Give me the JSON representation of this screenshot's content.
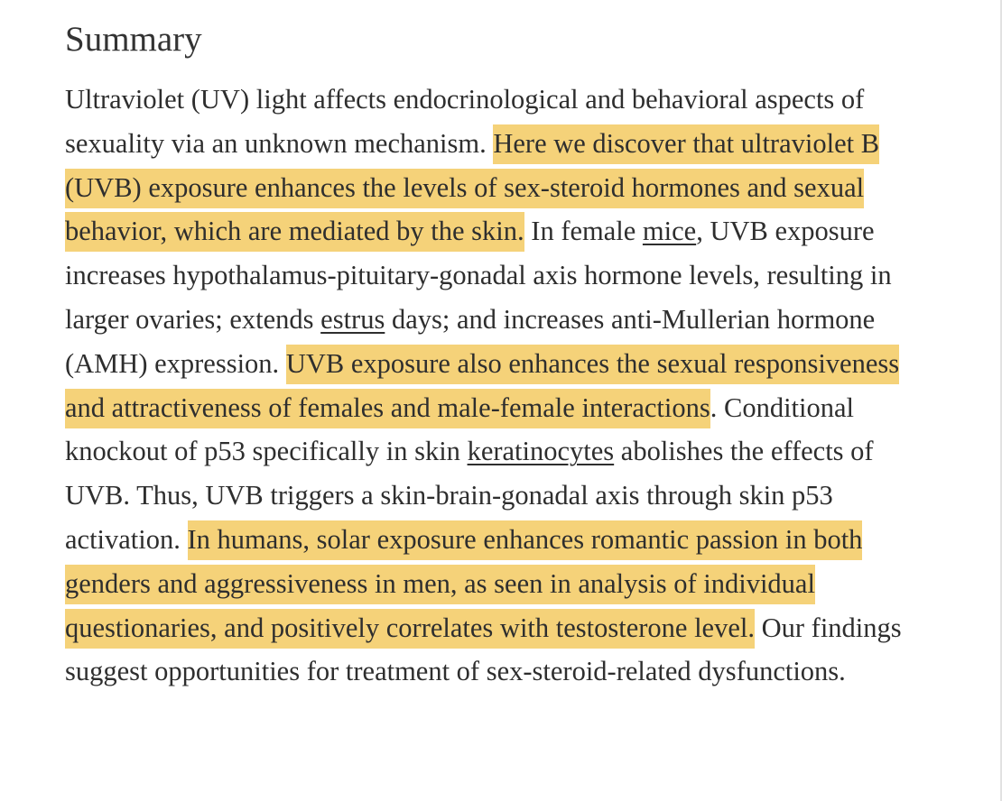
{
  "heading": "Summary",
  "paragraph": {
    "highlight_color": "#f5d279",
    "segments": [
      {
        "text": "Ultraviolet (UV) light affects endocrinological and behavioral aspects of sexuality via an unknown mechanism. ",
        "style": "plain"
      },
      {
        "text": "Here we discover that ultraviolet B (UVB) exposure enhances the levels of sex-steroid hormones and sexual behavior, which are mediated by the skin.",
        "style": "highlight"
      },
      {
        "text": " In female ",
        "style": "plain"
      },
      {
        "text": "mice",
        "style": "underline"
      },
      {
        "text": ", UVB exposure increases hypothalamus-pituitary-gonadal axis hormone levels, resulting in larger ovaries; extends ",
        "style": "plain"
      },
      {
        "text": "estrus",
        "style": "underline"
      },
      {
        "text": " days; and increases anti-Mullerian hormone (AMH) expression. ",
        "style": "plain"
      },
      {
        "text": "UVB exposure also enhances the sexual responsiveness and attractiveness of females and male-female interactions",
        "style": "highlight"
      },
      {
        "text": ". Conditional knockout of p53 specifically in skin ",
        "style": "plain"
      },
      {
        "text": "keratinocytes",
        "style": "underline"
      },
      {
        "text": " abolishes the effects of UVB. Thus, UVB triggers a skin-brain-gonadal axis through skin p53 activation. ",
        "style": "plain"
      },
      {
        "text": "In humans, solar exposure enhances romantic passion in both genders and aggressiveness in men, as seen in analysis of individual questionaries, and positively correlates with testosterone level.",
        "style": "highlight"
      },
      {
        "text": " Our findings suggest opportunities for treatment of sex-steroid-related dysfunctions.",
        "style": "plain"
      }
    ]
  }
}
